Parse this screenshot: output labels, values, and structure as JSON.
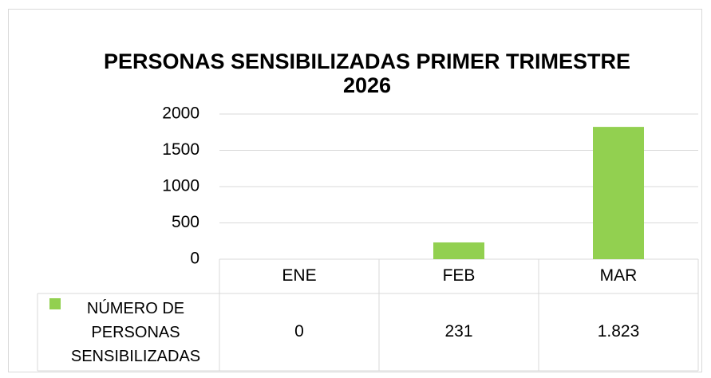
{
  "chart_data": {
    "type": "bar",
    "title": "PERSONAS SENSIBILIZADAS PRIMER TRIMESTRE 2026",
    "categories": [
      "ENE",
      "FEB",
      "MAR"
    ],
    "series": [
      {
        "name": "NÚMERO DE PERSONAS SENSIBILIZADAS",
        "color": "#92d050",
        "values": [
          0,
          231,
          1823
        ],
        "value_labels": [
          "0",
          "231",
          "1.823"
        ]
      }
    ],
    "ylim": [
      0,
      2000
    ],
    "yticks": [
      0,
      500,
      1000,
      1500,
      2000
    ],
    "grid": true
  }
}
